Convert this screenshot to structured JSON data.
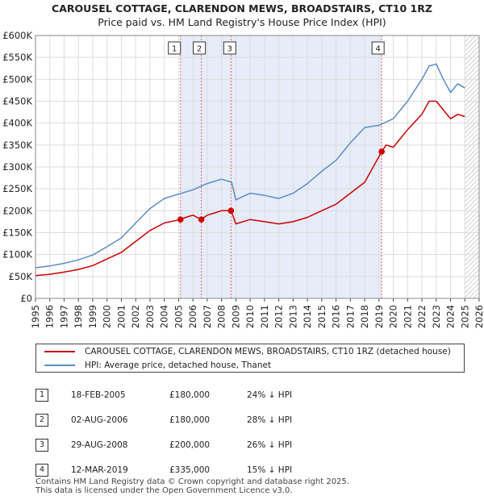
{
  "title": {
    "line1": "CAROUSEL COTTAGE, CLARENDON MEWS, BROADSTAIRS, CT10 1RZ",
    "line2": "Price paid vs. HM Land Registry's House Price Index (HPI)"
  },
  "chart_data": {
    "type": "line",
    "title": "CAROUSEL COTTAGE, CLARENDON MEWS, BROADSTAIRS, CT10 1RZ — Price paid vs. HM Land Registry's House Price Index (HPI)",
    "xlabel": "",
    "ylabel": "",
    "xlim": [
      1995,
      2026
    ],
    "ylim": [
      0,
      600000
    ],
    "x_ticks": [
      "1995",
      "1996",
      "1997",
      "1998",
      "1999",
      "2000",
      "2001",
      "2002",
      "2003",
      "2004",
      "2005",
      "2006",
      "2007",
      "2008",
      "2009",
      "2010",
      "2011",
      "2012",
      "2013",
      "2014",
      "2015",
      "2016",
      "2017",
      "2018",
      "2019",
      "2020",
      "2021",
      "2022",
      "2023",
      "2024",
      "2025",
      "2026"
    ],
    "y_ticks": [
      "£0",
      "£50K",
      "£100K",
      "£150K",
      "£200K",
      "£250K",
      "£300K",
      "£350K",
      "£400K",
      "£450K",
      "£500K",
      "£550K",
      "£600K"
    ],
    "grid": true,
    "shaded_region": {
      "from": 2005.13,
      "to": 2019.2
    },
    "future_hatch_from": 2025.0,
    "series": [
      {
        "name": "CAROUSEL COTTAGE, CLARENDON MEWS, BROADSTAIRS, CT10 1RZ (detached house)",
        "color": "#cc0000",
        "x": [
          1995,
          1996,
          1997,
          1998,
          1999,
          2000,
          2001,
          2002,
          2003,
          2004,
          2005.13,
          2005.5,
          2006,
          2006.59,
          2007,
          2007.5,
          2008,
          2008.66,
          2009,
          2010,
          2011,
          2012,
          2013,
          2014,
          2015,
          2016,
          2017,
          2018,
          2019.19,
          2019.5,
          2020,
          2021,
          2022,
          2022.5,
          2023,
          2023.5,
          2024,
          2024.5,
          2025
        ],
        "y": [
          52000,
          55000,
          60000,
          66000,
          75000,
          90000,
          105000,
          130000,
          155000,
          172000,
          180000,
          185000,
          190000,
          180000,
          190000,
          195000,
          200000,
          200000,
          170000,
          180000,
          175000,
          170000,
          175000,
          185000,
          200000,
          215000,
          240000,
          265000,
          335000,
          350000,
          345000,
          385000,
          420000,
          450000,
          450000,
          430000,
          410000,
          420000,
          415000
        ]
      },
      {
        "name": "HPI: Average price, detached house, Thanet",
        "color": "#5b8cc8",
        "x": [
          1995,
          1996,
          1997,
          1998,
          1999,
          2000,
          2001,
          2002,
          2003,
          2004,
          2005,
          2006,
          2007,
          2008,
          2008.7,
          2009,
          2010,
          2011,
          2012,
          2013,
          2014,
          2015,
          2016,
          2017,
          2018,
          2019,
          2020,
          2021,
          2022,
          2022.5,
          2023,
          2023.5,
          2024,
          2024.5,
          2025
        ],
        "y": [
          70000,
          74000,
          80000,
          88000,
          99000,
          118000,
          138000,
          172000,
          205000,
          228000,
          238000,
          248000,
          262000,
          272000,
          265000,
          225000,
          240000,
          235000,
          228000,
          240000,
          262000,
          290000,
          315000,
          355000,
          390000,
          395000,
          410000,
          450000,
          500000,
          530000,
          535000,
          500000,
          470000,
          490000,
          480000
        ]
      }
    ],
    "transactions": [
      {
        "label": "1",
        "date": "18-FEB-2005",
        "x": 2005.13,
        "price": 180000
      },
      {
        "label": "2",
        "date": "02-AUG-2006",
        "x": 2006.59,
        "price": 180000
      },
      {
        "label": "3",
        "date": "29-AUG-2008",
        "x": 2008.66,
        "price": 200000
      },
      {
        "label": "4",
        "date": "12-MAR-2019",
        "x": 2019.19,
        "price": 335000
      }
    ]
  },
  "legend": {
    "red_label": "CAROUSEL COTTAGE, CLARENDON MEWS, BROADSTAIRS, CT10 1RZ (detached house)",
    "blue_label": "HPI: Average price, detached house, Thanet",
    "red_color": "#cc0000",
    "blue_color": "#5b8cc8"
  },
  "table": [
    {
      "num": "1",
      "date": "18-FEB-2005",
      "price": "£180,000",
      "hpi": "24% ↓ HPI"
    },
    {
      "num": "2",
      "date": "02-AUG-2006",
      "price": "£180,000",
      "hpi": "28% ↓ HPI"
    },
    {
      "num": "3",
      "date": "29-AUG-2008",
      "price": "£200,000",
      "hpi": "26% ↓ HPI"
    },
    {
      "num": "4",
      "date": "12-MAR-2019",
      "price": "£335,000",
      "hpi": "15% ↓ HPI"
    }
  ],
  "footer": {
    "line1": "Contains HM Land Registry data © Crown copyright and database right 2025.",
    "line2": "This data is licensed under the Open Government Licence v3.0."
  }
}
